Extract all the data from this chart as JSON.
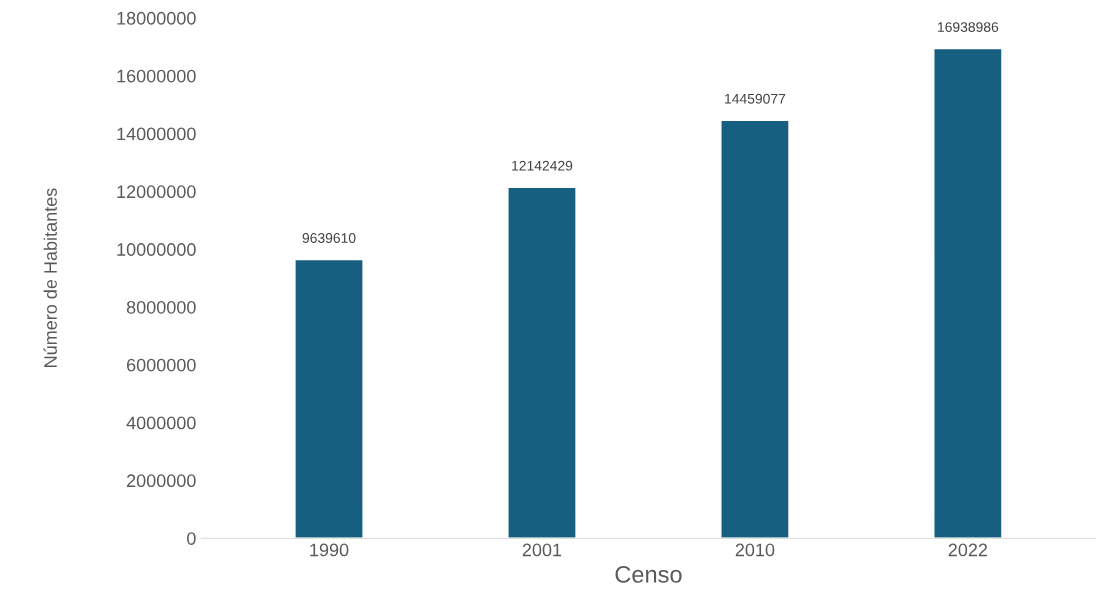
{
  "chart_data": {
    "type": "bar",
    "xlabel": "Censo",
    "ylabel": "Número de Habitantes",
    "categories": [
      "1990",
      "2001",
      "2010",
      "2022"
    ],
    "values": [
      9639610,
      12142429,
      14459077,
      16938986
    ],
    "color": "#165f80",
    "ylim": [
      0,
      18000000
    ],
    "yticks": [
      0,
      2000000,
      4000000,
      6000000,
      8000000,
      10000000,
      12000000,
      14000000,
      16000000,
      18000000
    ],
    "data_labels": true,
    "grid": false,
    "legend": false
  }
}
